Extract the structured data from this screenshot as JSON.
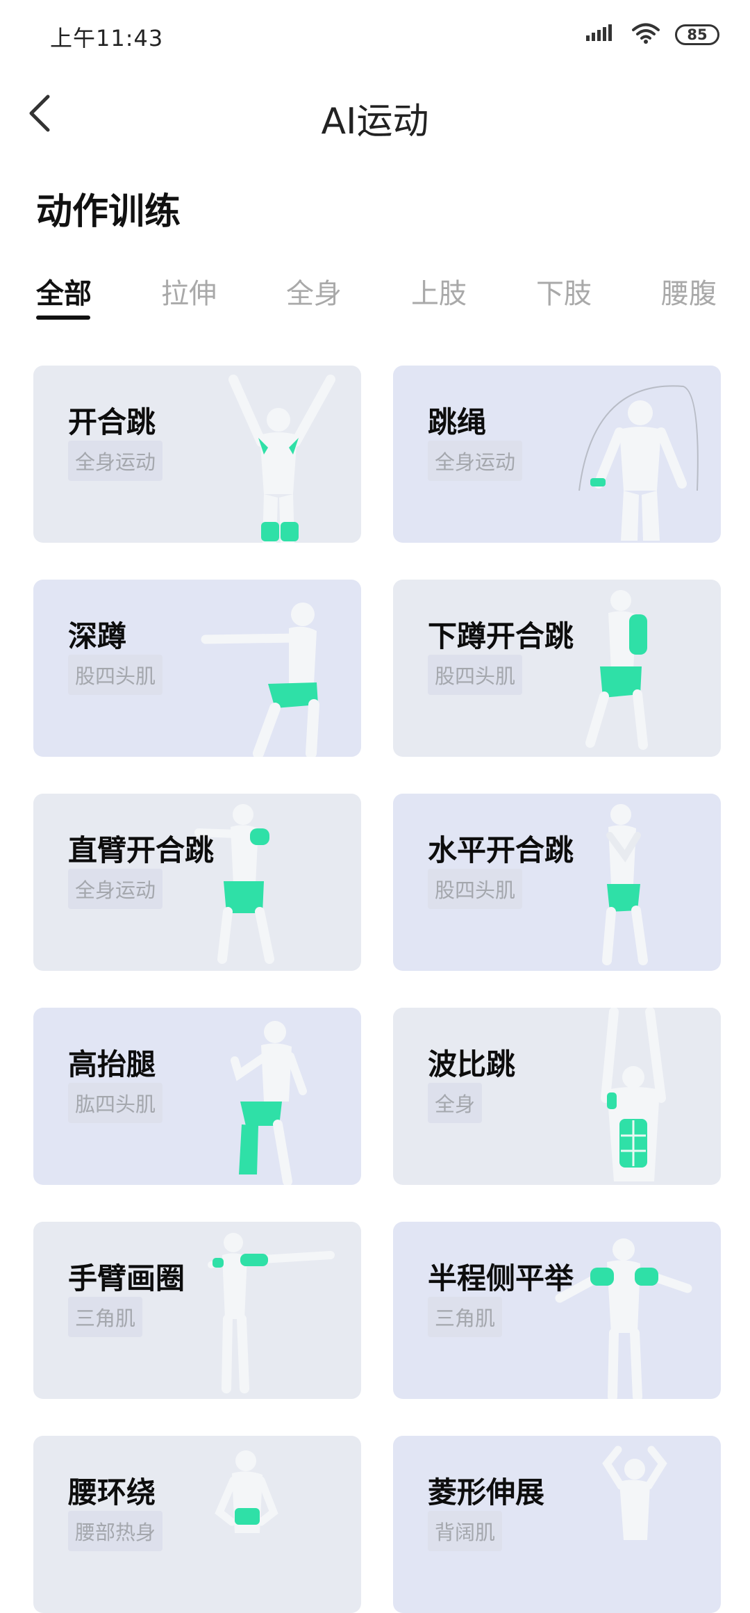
{
  "status": {
    "time": "上午11:43",
    "battery": "85"
  },
  "header": {
    "title": "AI运动"
  },
  "section": {
    "title": "动作训练"
  },
  "tabs": [
    {
      "label": "全部",
      "active": true
    },
    {
      "label": "拉伸"
    },
    {
      "label": "全身"
    },
    {
      "label": "上肢"
    },
    {
      "label": "下肢"
    },
    {
      "label": "腰腹"
    }
  ],
  "exercises": [
    {
      "name": "开合跳",
      "tag": "全身运动"
    },
    {
      "name": "跳绳",
      "tag": "全身运动"
    },
    {
      "name": "深蹲",
      "tag": "股四头肌"
    },
    {
      "name": "下蹲开合跳",
      "tag": "股四头肌"
    },
    {
      "name": "直臂开合跳",
      "tag": "全身运动"
    },
    {
      "name": "水平开合跳",
      "tag": "股四头肌"
    },
    {
      "name": "高抬腿",
      "tag": "肱四头肌"
    },
    {
      "name": "波比跳",
      "tag": "全身"
    },
    {
      "name": "手臂画圈",
      "tag": "三角肌"
    },
    {
      "name": "半程侧平举",
      "tag": "三角肌"
    },
    {
      "name": "腰环绕",
      "tag": "腰部热身"
    },
    {
      "name": "菱形伸展",
      "tag": "背阔肌"
    }
  ],
  "colors": {
    "highlight": "#2fe0a7",
    "figure": "#f2f4f7"
  }
}
